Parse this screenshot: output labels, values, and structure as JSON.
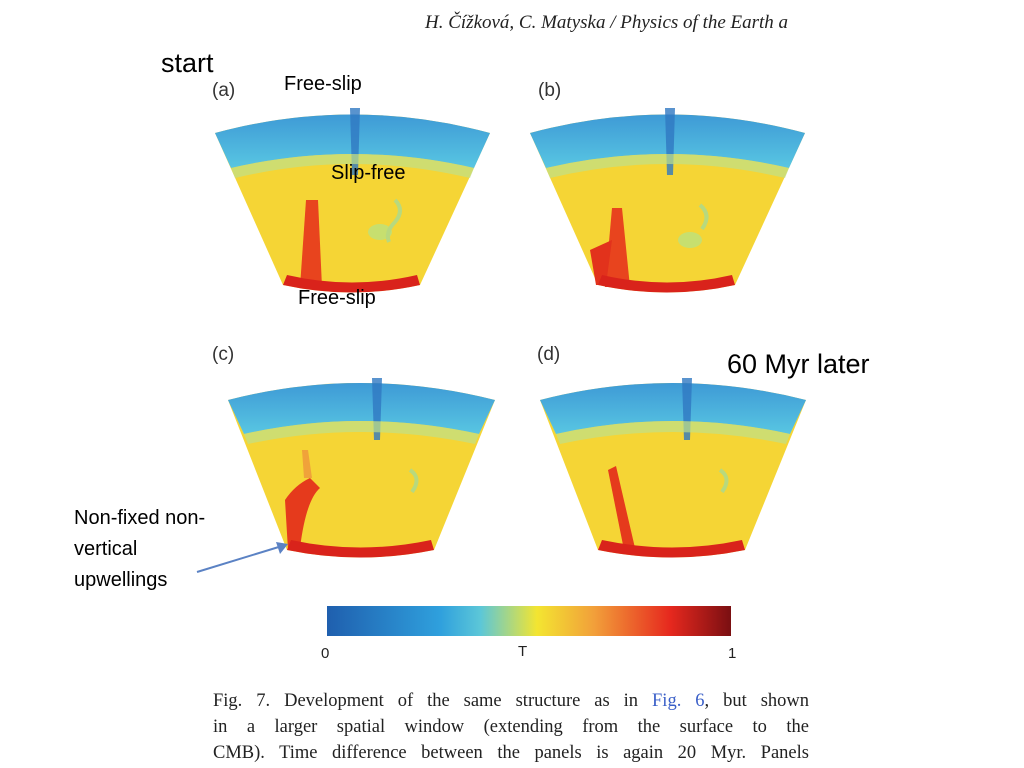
{
  "header": {
    "running_head": "H. Čížková, C. Matyska / Physics of the Earth a"
  },
  "annotations": {
    "start": "start",
    "free_slip_top": "Free-slip",
    "slip_free": "Slip-free",
    "free_slip_bottom": "Free-slip",
    "later": "60 Myr later",
    "upwelling_line1": "Non-fixed non-",
    "upwelling_line2": "vertical",
    "upwelling_line3": "upwellings"
  },
  "panels": {
    "a": "(a)",
    "b": "(b)",
    "c": "(c)",
    "d": "(d)"
  },
  "colorbar": {
    "min_label": "0",
    "mid_label": "T",
    "max_label": "1",
    "colors": [
      "#1f5fae",
      "#2fa0dd",
      "#55c3e6",
      "#f3e531",
      "#f2a03a",
      "#e6281e",
      "#7a0f12"
    ]
  },
  "caption": {
    "line1_a": "Fig. 7. Development of the same structure as in",
    "line1_ref": "Fig. 6",
    "line1_b": ", but shown",
    "line2": "in a larger spatial window (extending from the surface to the",
    "line3": "CMB). Time difference between the panels is again 20 Myr. Panels"
  }
}
